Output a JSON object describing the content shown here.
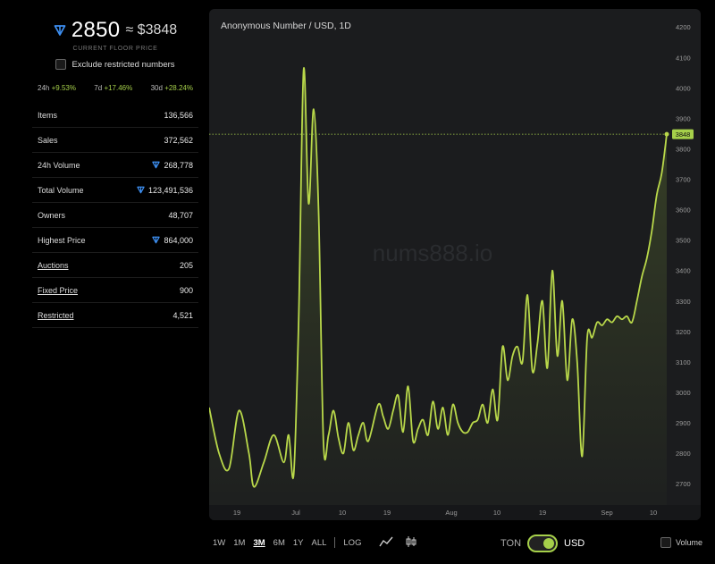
{
  "colors": {
    "accent": "#a6d04a",
    "ton": "#3d8ef0",
    "panel": "#1b1c1e"
  },
  "price": {
    "ton_value": "2850",
    "usd_value": "≈ $3848",
    "caption": "CURRENT FLOOR PRICE"
  },
  "exclude_label": "Exclude restricted numbers",
  "changes": [
    {
      "period": "24h",
      "value": "+9.53%"
    },
    {
      "period": "7d",
      "value": "+17.46%"
    },
    {
      "period": "30d",
      "value": "+28.24%"
    }
  ],
  "stats": [
    {
      "label": "Items",
      "value": "136,566",
      "ton": false,
      "link": false
    },
    {
      "label": "Sales",
      "value": "372,562",
      "ton": false,
      "link": false
    },
    {
      "label": "24h Volume",
      "value": "268,778",
      "ton": true,
      "link": false
    },
    {
      "label": "Total Volume",
      "value": "123,491,536",
      "ton": true,
      "link": false
    },
    {
      "label": "Owners",
      "value": "48,707",
      "ton": false,
      "link": false
    },
    {
      "label": "Highest Price",
      "value": "864,000",
      "ton": true,
      "link": false
    },
    {
      "label": "Auctions",
      "value": "205",
      "ton": false,
      "link": true
    },
    {
      "label": "Fixed Price",
      "value": "900",
      "ton": false,
      "link": true
    },
    {
      "label": "Restricted",
      "value": "4,521",
      "ton": false,
      "link": true
    }
  ],
  "chart_data": {
    "type": "area",
    "title": "Anonymous Number / USD, 1D",
    "watermark": "nums888.io",
    "x_ticks": [
      "19",
      "Jul",
      "10",
      "19",
      "Aug",
      "10",
      "19",
      "Sep",
      "10"
    ],
    "y_ticks": [
      2700,
      2800,
      2900,
      3000,
      3100,
      3200,
      3300,
      3400,
      3500,
      3600,
      3700,
      3800,
      3900,
      4000,
      4100,
      4200
    ],
    "ylim": [
      2630,
      4230
    ],
    "last_value": 3848,
    "last_label": "3848",
    "x": [
      0,
      2,
      4,
      6,
      8,
      9,
      11,
      13,
      15,
      16,
      17,
      18,
      19,
      20,
      21,
      22,
      23,
      24,
      25,
      26,
      27,
      28,
      29,
      30,
      31,
      32,
      34,
      35,
      36,
      37,
      38,
      39,
      40,
      41,
      42,
      43,
      44,
      45,
      46,
      47,
      48,
      49,
      50,
      51,
      52,
      53,
      54,
      55,
      56,
      57,
      58,
      59,
      60,
      61,
      62,
      63,
      64,
      65,
      66,
      67,
      68,
      69,
      70,
      71,
      72,
      73,
      74,
      75,
      76,
      77,
      78,
      79,
      80,
      81,
      82,
      83,
      84,
      85,
      86,
      87,
      88,
      89,
      90,
      91,
      92
    ],
    "y": [
      2950,
      2800,
      2750,
      2940,
      2800,
      2690,
      2770,
      2860,
      2770,
      2860,
      2730,
      3240,
      4060,
      3620,
      3930,
      3600,
      2830,
      2860,
      2940,
      2850,
      2800,
      2900,
      2810,
      2860,
      2900,
      2840,
      2960,
      2920,
      2880,
      2940,
      2990,
      2870,
      3020,
      2840,
      2880,
      2910,
      2860,
      2970,
      2880,
      2950,
      2860,
      2960,
      2900,
      2870,
      2870,
      2900,
      2910,
      2960,
      2900,
      3010,
      2910,
      3150,
      3040,
      3120,
      3150,
      3100,
      3320,
      3070,
      3160,
      3300,
      3080,
      3400,
      3120,
      3300,
      3040,
      3240,
      3100,
      2790,
      3180,
      3180,
      3230,
      3220,
      3240,
      3230,
      3250,
      3240,
      3250,
      3230,
      3300,
      3380,
      3440,
      3530,
      3650,
      3720,
      3848
    ]
  },
  "range": {
    "options": [
      "1W",
      "1M",
      "3M",
      "6M",
      "1Y",
      "ALL"
    ],
    "selected": "3M",
    "log_label": "LOG"
  },
  "icons": [
    "line-chart-icon",
    "candlestick-icon"
  ],
  "toggle": {
    "left": "TON",
    "right": "USD",
    "selected": "USD"
  },
  "volume_label": "Volume"
}
